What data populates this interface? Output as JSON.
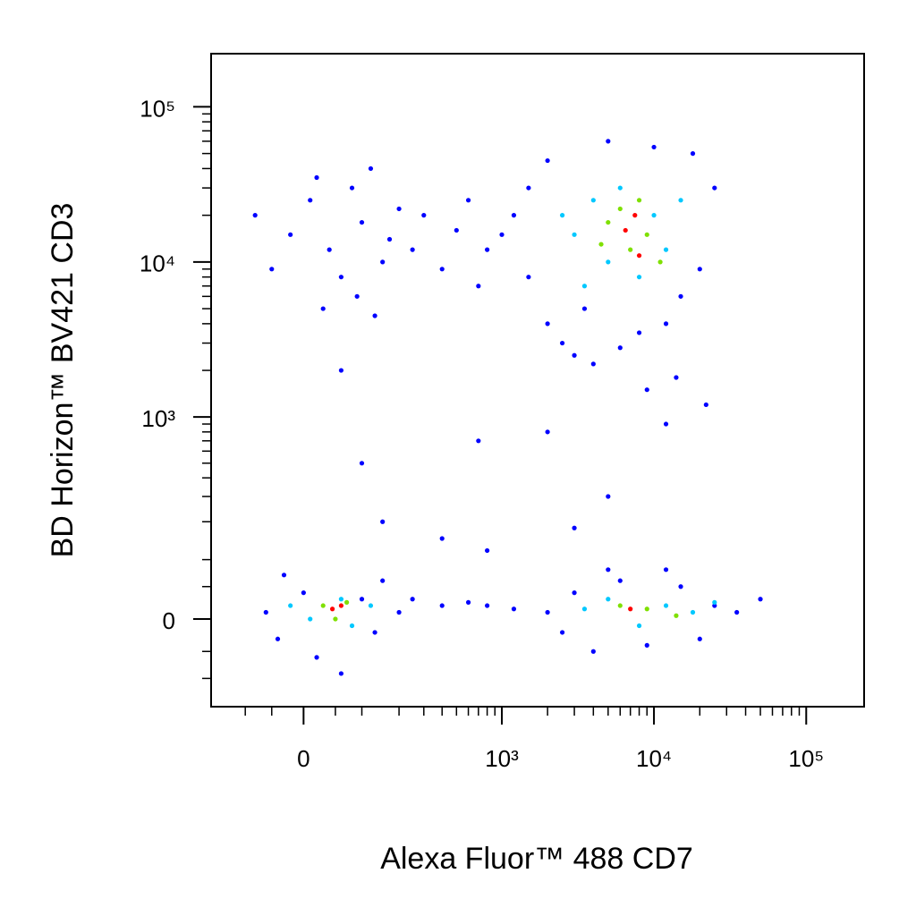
{
  "chart_data": {
    "type": "scatter",
    "x_label": "Alexa Fluor™ 488  CD7",
    "y_label": "BD Horizon™ BV421  CD3",
    "xscale": "biexponential",
    "yscale": "biexponential",
    "xlim": [
      -190,
      240000
    ],
    "ylim": [
      -170,
      220000
    ],
    "xticks": [
      {
        "value": 0,
        "label": "0"
      },
      {
        "value": 1000,
        "label": "10³"
      },
      {
        "value": 10000,
        "label": "10⁴"
      },
      {
        "value": 100000,
        "label": "10⁵"
      }
    ],
    "yticks": [
      {
        "value": 0,
        "label": "0"
      },
      {
        "value": 1000,
        "label": "10³"
      },
      {
        "value": 10000,
        "label": "10⁴"
      },
      {
        "value": 100000,
        "label": "10⁵"
      }
    ],
    "xminorticks": [
      -100,
      -50,
      50,
      100,
      200,
      300,
      400,
      500,
      600,
      700,
      800,
      900,
      2000,
      3000,
      4000,
      5000,
      6000,
      7000,
      8000,
      9000,
      20000,
      30000,
      40000,
      50000,
      60000,
      70000,
      80000,
      90000
    ],
    "yminorticks": [
      -100,
      -50,
      50,
      100,
      200,
      300,
      400,
      500,
      600,
      700,
      800,
      900,
      2000,
      3000,
      4000,
      5000,
      6000,
      7000,
      8000,
      9000,
      20000,
      30000,
      40000,
      50000,
      60000,
      70000,
      80000,
      90000
    ],
    "series": [
      {
        "color": "#0000ff",
        "x": [
          -20,
          10,
          40,
          60,
          80,
          100,
          150,
          120,
          30,
          200,
          -50,
          90,
          170,
          250,
          300,
          400,
          500,
          600,
          800,
          700,
          -80,
          20,
          130,
          60,
          1200,
          1500,
          2000,
          2500,
          3000,
          4000,
          6000,
          8000,
          12000,
          15000,
          20000,
          25000,
          2000,
          5000,
          10000,
          18000,
          1500,
          1000,
          3500,
          9000,
          14000,
          22000,
          100,
          150,
          700,
          2000,
          5000,
          400,
          800,
          12000,
          3000,
          -60,
          -40,
          0,
          20,
          100,
          130,
          150,
          -30,
          60,
          200,
          250,
          400,
          600,
          800,
          1200,
          2000,
          2500,
          3000,
          4000,
          6000,
          9000,
          15000,
          25000,
          35000,
          50000,
          20000,
          12000,
          5000
        ],
        "y": [
          15000,
          25000,
          12000,
          8000,
          30000,
          18000,
          10000,
          40000,
          5000,
          22000,
          9000,
          6000,
          14000,
          12000,
          20000,
          9000,
          16000,
          25000,
          12000,
          7000,
          20000,
          35000,
          4500,
          2000,
          20000,
          8000,
          4000,
          3000,
          2500,
          2200,
          2800,
          3500,
          4000,
          6000,
          9000,
          30000,
          45000,
          60000,
          55000,
          50000,
          30000,
          15000,
          5000,
          1500,
          1800,
          1200,
          500,
          200,
          700,
          800,
          300,
          150,
          120,
          900,
          180,
          10,
          -30,
          40,
          -60,
          30,
          -20,
          60,
          70,
          -90,
          10,
          30,
          20,
          25,
          20,
          15,
          10,
          -20,
          40,
          -50,
          60,
          -40,
          50,
          20,
          10,
          30,
          -30,
          80,
          80
        ]
      },
      {
        "color": "#00c8ff",
        "x": [
          3000,
          4000,
          5000,
          6000,
          8000,
          10000,
          12000,
          3500,
          15000,
          2500,
          10,
          60,
          -20,
          80,
          120,
          3500,
          5000,
          8000,
          12000,
          18000,
          25000
        ],
        "y": [
          15000,
          25000,
          10000,
          30000,
          8000,
          20000,
          12000,
          7000,
          25000,
          20000,
          0,
          30,
          20,
          -10,
          20,
          15,
          30,
          -10,
          20,
          10,
          25
        ]
      },
      {
        "color": "#7fe000",
        "x": [
          5000,
          7000,
          6000,
          9000,
          4500,
          8000,
          11000,
          30,
          50,
          70,
          6000,
          9000,
          14000
        ],
        "y": [
          18000,
          12000,
          22000,
          15000,
          13000,
          25000,
          10000,
          20,
          0,
          25,
          20,
          15,
          5
        ]
      },
      {
        "color": "#ff0000",
        "x": [
          6500,
          7500,
          8000,
          45,
          60,
          7000
        ],
        "y": [
          16000,
          20000,
          11000,
          15,
          20,
          15
        ]
      }
    ]
  }
}
